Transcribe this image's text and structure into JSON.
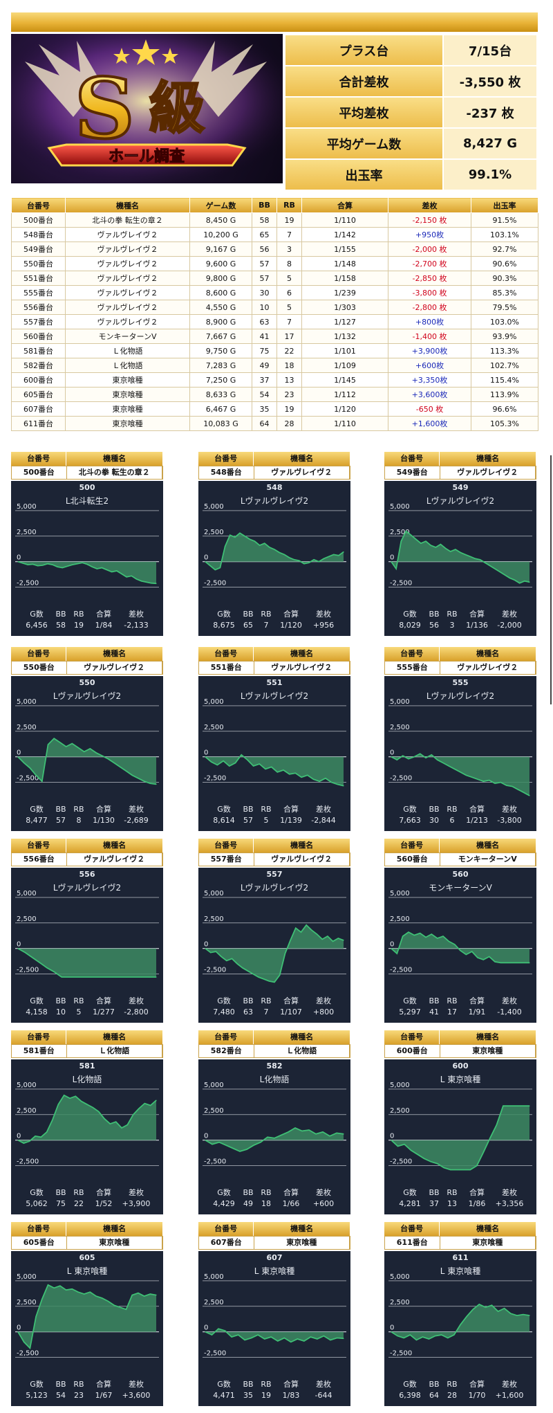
{
  "banner": {
    "big": "S",
    "kanji": "級",
    "ribbon": "ホール調査"
  },
  "summary": [
    {
      "label": "プラス台",
      "value": "7/15台"
    },
    {
      "label": "合計差枚",
      "value": "-3,550 枚"
    },
    {
      "label": "平均差枚",
      "value": "-237 枚"
    },
    {
      "label": "平均ゲーム数",
      "value": "8,427 G"
    },
    {
      "label": "出玉率",
      "value": "99.1%"
    }
  ],
  "table": {
    "headers": [
      "台番号",
      "機種名",
      "ゲーム数",
      "BB",
      "RB",
      "合算",
      "差枚",
      "出玉率"
    ],
    "rows": [
      [
        "500番台",
        "北斗の拳 転生の章２",
        "8,450 G",
        "58",
        "19",
        "1/110",
        "-2,150 枚",
        "91.5%"
      ],
      [
        "548番台",
        "ヴァルヴレイヴ２",
        "10,200 G",
        "65",
        "7",
        "1/142",
        "+950枚",
        "103.1%"
      ],
      [
        "549番台",
        "ヴァルヴレイヴ２",
        "9,167 G",
        "56",
        "3",
        "1/155",
        "-2,000 枚",
        "92.7%"
      ],
      [
        "550番台",
        "ヴァルヴレイヴ２",
        "9,600 G",
        "57",
        "8",
        "1/148",
        "-2,700 枚",
        "90.6%"
      ],
      [
        "551番台",
        "ヴァルヴレイヴ２",
        "9,800 G",
        "57",
        "5",
        "1/158",
        "-2,850 枚",
        "90.3%"
      ],
      [
        "555番台",
        "ヴァルヴレイヴ２",
        "8,600 G",
        "30",
        "6",
        "1/239",
        "-3,800 枚",
        "85.3%"
      ],
      [
        "556番台",
        "ヴァルヴレイヴ２",
        "4,550 G",
        "10",
        "5",
        "1/303",
        "-2,800 枚",
        "79.5%"
      ],
      [
        "557番台",
        "ヴァルヴレイヴ２",
        "8,900 G",
        "63",
        "7",
        "1/127",
        "+800枚",
        "103.0%"
      ],
      [
        "560番台",
        "モンキーターンV",
        "7,667 G",
        "41",
        "17",
        "1/132",
        "-1,400 枚",
        "93.9%"
      ],
      [
        "581番台",
        "Ｌ化物語",
        "9,750 G",
        "75",
        "22",
        "1/101",
        "+3,900枚",
        "113.3%"
      ],
      [
        "582番台",
        "Ｌ化物語",
        "7,283 G",
        "49",
        "18",
        "1/109",
        "+600枚",
        "102.7%"
      ],
      [
        "600番台",
        "東京喰種",
        "7,250 G",
        "37",
        "13",
        "1/145",
        "+3,350枚",
        "115.4%"
      ],
      [
        "605番台",
        "東京喰種",
        "8,633 G",
        "54",
        "23",
        "1/112",
        "+3,600枚",
        "113.9%"
      ],
      [
        "607番台",
        "東京喰種",
        "6,467 G",
        "35",
        "19",
        "1/120",
        "-650 枚",
        "96.6%"
      ],
      [
        "611番台",
        "東京喰種",
        "10,083 G",
        "64",
        "28",
        "1/110",
        "+1,600枚",
        "105.3%"
      ]
    ]
  },
  "card_labels": {
    "unit": "台番号",
    "model": "機種名",
    "g": "G数",
    "bb": "BB",
    "rb": "RB",
    "total": "合算",
    "diff": "差枚"
  },
  "colors": {
    "panel": "#1c2435",
    "line": "#3fbf75",
    "fill": "#3c8a62",
    "gold": "#e8b236",
    "neg": "#d0021b",
    "pos": "#1a28b8"
  },
  "chart_data": [
    {
      "type": "area",
      "unit": "500番台",
      "model": "北斗の拳 転生の章２",
      "num": "500",
      "title": "L北斗転生2",
      "yticks": [
        "5,000",
        "2,500",
        "0",
        "-2,500"
      ],
      "ylim": [
        -2800,
        5200
      ],
      "values": [
        0,
        -150,
        -300,
        -250,
        -400,
        -350,
        -200,
        -300,
        -500,
        -600,
        -450,
        -300,
        -200,
        -100,
        -250,
        -500,
        -700,
        -600,
        -800,
        -1000,
        -900,
        -1200,
        -1500,
        -1400,
        -1700,
        -1900,
        -2000,
        -2100,
        -2133
      ],
      "stats": {
        "g": "6,456",
        "bb": "58",
        "rb": "19",
        "total": "1/84",
        "diff": "-2,133"
      }
    },
    {
      "type": "area",
      "unit": "548番台",
      "model": "ヴァルヴレイヴ２",
      "num": "548",
      "title": "Lヴァルヴレイヴ2",
      "yticks": [
        "5,000",
        "2,500",
        "0",
        "-2,500"
      ],
      "ylim": [
        -2800,
        5200
      ],
      "values": [
        0,
        -400,
        -800,
        -600,
        1500,
        2600,
        2400,
        2800,
        2500,
        2200,
        2000,
        1600,
        1800,
        1400,
        1200,
        900,
        700,
        400,
        200,
        100,
        -200,
        -100,
        200,
        0,
        300,
        500,
        700,
        600,
        956
      ],
      "stats": {
        "g": "8,675",
        "bb": "65",
        "rb": "7",
        "total": "1/120",
        "diff": "+956"
      }
    },
    {
      "type": "area",
      "unit": "549番台",
      "model": "ヴァルヴレイヴ２",
      "num": "549",
      "title": "Lヴァルヴレイヴ2",
      "yticks": [
        "5,000",
        "2,500",
        "0",
        "-2,500"
      ],
      "ylim": [
        -2800,
        5200
      ],
      "values": [
        0,
        -700,
        2000,
        3000,
        2600,
        2200,
        1800,
        2000,
        1600,
        1400,
        1700,
        1300,
        1000,
        1200,
        900,
        700,
        500,
        300,
        200,
        -100,
        -400,
        -700,
        -1000,
        -1300,
        -1600,
        -1800,
        -2100,
        -1900,
        -2000
      ],
      "stats": {
        "g": "8,029",
        "bb": "56",
        "rb": "3",
        "total": "1/136",
        "diff": "-2,000"
      }
    },
    {
      "type": "area",
      "unit": "550番台",
      "model": "ヴァルヴレイヴ２",
      "num": "550",
      "title": "Lヴァルヴレイヴ2",
      "yticks": [
        "5,000",
        "2,500",
        "0",
        "-2,500"
      ],
      "ylim": [
        -2800,
        5200
      ],
      "values": [
        0,
        -600,
        -1100,
        -1800,
        -2400,
        1200,
        1800,
        1400,
        1000,
        1300,
        900,
        500,
        800,
        400,
        100,
        -200,
        -600,
        -1000,
        -1400,
        -1800,
        -2100,
        -2400,
        -2600,
        -2689
      ],
      "stats": {
        "g": "8,477",
        "bb": "57",
        "rb": "8",
        "total": "1/130",
        "diff": "-2,689"
      }
    },
    {
      "type": "area",
      "unit": "551番台",
      "model": "ヴァルヴレイヴ２",
      "num": "551",
      "title": "Lヴァルヴレイヴ2",
      "yticks": [
        "5,000",
        "2,500",
        "0",
        "-2,500"
      ],
      "ylim": [
        -2800,
        5200
      ],
      "values": [
        0,
        -500,
        -800,
        -400,
        -900,
        -600,
        200,
        -300,
        -900,
        -700,
        -1200,
        -1000,
        -1500,
        -1300,
        -1700,
        -1600,
        -2000,
        -1800,
        -2200,
        -2400,
        -2100,
        -2500,
        -2700,
        -2844
      ],
      "stats": {
        "g": "8,614",
        "bb": "57",
        "rb": "5",
        "total": "1/139",
        "diff": "-2,844"
      }
    },
    {
      "type": "area",
      "unit": "555番台",
      "model": "ヴァルヴレイヴ２",
      "num": "555",
      "title": "Lヴァルヴレイヴ2",
      "yticks": [
        "5,000",
        "2,500",
        "0",
        "-2,500"
      ],
      "ylim": [
        -2800,
        5200
      ],
      "values": [
        0,
        -300,
        100,
        -200,
        0,
        300,
        -100,
        200,
        -300,
        -600,
        -900,
        -1200,
        -1500,
        -1800,
        -2000,
        -2200,
        -2400,
        -2300,
        -2600,
        -2500,
        -2800,
        -2900,
        -3200,
        -3500,
        -3800
      ],
      "stats": {
        "g": "7,663",
        "bb": "30",
        "rb": "6",
        "total": "1/213",
        "diff": "-3,800"
      }
    },
    {
      "type": "area",
      "unit": "556番台",
      "model": "ヴァルヴレイヴ２",
      "num": "556",
      "title": "Lヴァルヴレイヴ2",
      "yticks": [
        "5,000",
        "2,500",
        "0",
        "-2,500"
      ],
      "ylim": [
        -2800,
        5200
      ],
      "values": [
        0,
        -400,
        -900,
        -1400,
        -1900,
        -2300,
        -2800,
        -2800,
        -2800,
        -2800,
        -2800,
        -2800,
        -2800,
        -2800,
        -2800,
        -2800,
        -2800,
        -2800,
        -2800,
        -2800
      ],
      "stats": {
        "g": "4,158",
        "bb": "10",
        "rb": "5",
        "total": "1/277",
        "diff": "-2,800"
      }
    },
    {
      "type": "area",
      "unit": "557番台",
      "model": "ヴァルヴレイヴ２",
      "num": "557",
      "title": "Lヴァルヴレイヴ2",
      "yticks": [
        "5,000",
        "2,500",
        "0",
        "-2,500"
      ],
      "ylim": [
        -2800,
        5200
      ],
      "values": [
        0,
        -400,
        -300,
        -800,
        -1200,
        -1000,
        -1500,
        -1900,
        -2200,
        -2500,
        -2800,
        -3000,
        -3200,
        -3300,
        -2600,
        -500,
        800,
        2000,
        1600,
        2300,
        1800,
        1400,
        900,
        1200,
        700,
        1000,
        800
      ],
      "stats": {
        "g": "7,480",
        "bb": "63",
        "rb": "7",
        "total": "1/107",
        "diff": "+800"
      }
    },
    {
      "type": "area",
      "unit": "560番台",
      "model": "モンキーターンV",
      "num": "560",
      "title": "モンキーターンV",
      "yticks": [
        "5,000",
        "2,500",
        "0",
        "-2,500"
      ],
      "ylim": [
        -2800,
        5200
      ],
      "values": [
        0,
        -500,
        1200,
        1600,
        1300,
        1500,
        1100,
        1400,
        1000,
        1200,
        700,
        400,
        -200,
        -600,
        -300,
        -900,
        -1100,
        -800,
        -1300,
        -1400,
        -1400,
        -1400,
        -1400,
        -1400,
        -1400
      ],
      "stats": {
        "g": "5,297",
        "bb": "41",
        "rb": "17",
        "total": "1/91",
        "diff": "-1,400"
      }
    },
    {
      "type": "area",
      "unit": "581番台",
      "model": "Ｌ化物語",
      "num": "581",
      "title": "L化物語",
      "yticks": [
        "5,000",
        "2,500",
        "0",
        "-2,500"
      ],
      "ylim": [
        -2800,
        5200
      ],
      "values": [
        0,
        -300,
        -100,
        400,
        300,
        800,
        2000,
        3500,
        4400,
        4100,
        4300,
        3800,
        3500,
        3200,
        2800,
        2100,
        1600,
        1800,
        1200,
        1500,
        2500,
        3100,
        3600,
        3400,
        3900
      ],
      "stats": {
        "g": "5,062",
        "bb": "75",
        "rb": "22",
        "total": "1/52",
        "diff": "+3,900"
      }
    },
    {
      "type": "area",
      "unit": "582番台",
      "model": "Ｌ化物語",
      "num": "582",
      "title": "L化物語",
      "yticks": [
        "5,000",
        "2,500",
        "0",
        "-2,500"
      ],
      "ylim": [
        -2800,
        5200
      ],
      "values": [
        0,
        -400,
        -200,
        -500,
        -800,
        -1100,
        -900,
        -500,
        -200,
        300,
        200,
        500,
        800,
        1200,
        900,
        1000,
        600,
        800,
        400,
        700,
        600
      ],
      "stats": {
        "g": "4,429",
        "bb": "49",
        "rb": "18",
        "total": "1/66",
        "diff": "+600"
      }
    },
    {
      "type": "area",
      "unit": "600番台",
      "model": "東京喰種",
      "num": "600",
      "title": "L 東京喰種",
      "yticks": [
        "5,000",
        "2,500",
        "0",
        "-2,500"
      ],
      "ylim": [
        -2800,
        5200
      ],
      "values": [
        0,
        -600,
        -400,
        -1000,
        -1400,
        -1800,
        -2100,
        -2300,
        -2700,
        -2900,
        -2900,
        -2900,
        -2900,
        -2500,
        -1200,
        200,
        1500,
        3356,
        3356,
        3356,
        3356,
        3356
      ],
      "stats": {
        "g": "4,281",
        "bb": "37",
        "rb": "13",
        "total": "1/86",
        "diff": "+3,356"
      }
    },
    {
      "type": "area",
      "unit": "605番台",
      "model": "東京喰種",
      "num": "605",
      "title": "L 東京喰種",
      "yticks": [
        "5,000",
        "2,500",
        "0",
        "-2,500"
      ],
      "ylim": [
        -2800,
        5200
      ],
      "values": [
        0,
        -1000,
        -1600,
        1500,
        3200,
        4600,
        4300,
        4500,
        4100,
        4200,
        3900,
        3700,
        3900,
        3500,
        3300,
        3000,
        2600,
        2400,
        2200,
        3600,
        3800,
        3500,
        3700,
        3600
      ],
      "stats": {
        "g": "5,123",
        "bb": "54",
        "rb": "23",
        "total": "1/67",
        "diff": "+3,600"
      }
    },
    {
      "type": "area",
      "unit": "607番台",
      "model": "東京喰種",
      "num": "607",
      "title": "L 東京喰種",
      "yticks": [
        "5,000",
        "2,500",
        "0",
        "-2,500"
      ],
      "ylim": [
        -2800,
        5200
      ],
      "values": [
        0,
        -300,
        300,
        100,
        -500,
        -300,
        -800,
        -600,
        -300,
        -700,
        -500,
        -900,
        -600,
        -1000,
        -700,
        -900,
        -500,
        -700,
        -400,
        -800,
        -600,
        -644
      ],
      "stats": {
        "g": "4,471",
        "bb": "35",
        "rb": "19",
        "total": "1/83",
        "diff": "-644"
      }
    },
    {
      "type": "area",
      "unit": "611番台",
      "model": "東京喰種",
      "num": "611",
      "title": "L 東京喰種",
      "yticks": [
        "5,000",
        "2,500",
        "0",
        "-2,500"
      ],
      "ylim": [
        -2800,
        5200
      ],
      "values": [
        0,
        -400,
        -600,
        -300,
        -800,
        -500,
        -700,
        -400,
        -300,
        -600,
        -300,
        700,
        1500,
        2200,
        2700,
        2400,
        2600,
        2000,
        2300,
        1800,
        1600,
        1700,
        1600
      ],
      "stats": {
        "g": "6,398",
        "bb": "64",
        "rb": "28",
        "total": "1/70",
        "diff": "+1,600"
      }
    }
  ]
}
